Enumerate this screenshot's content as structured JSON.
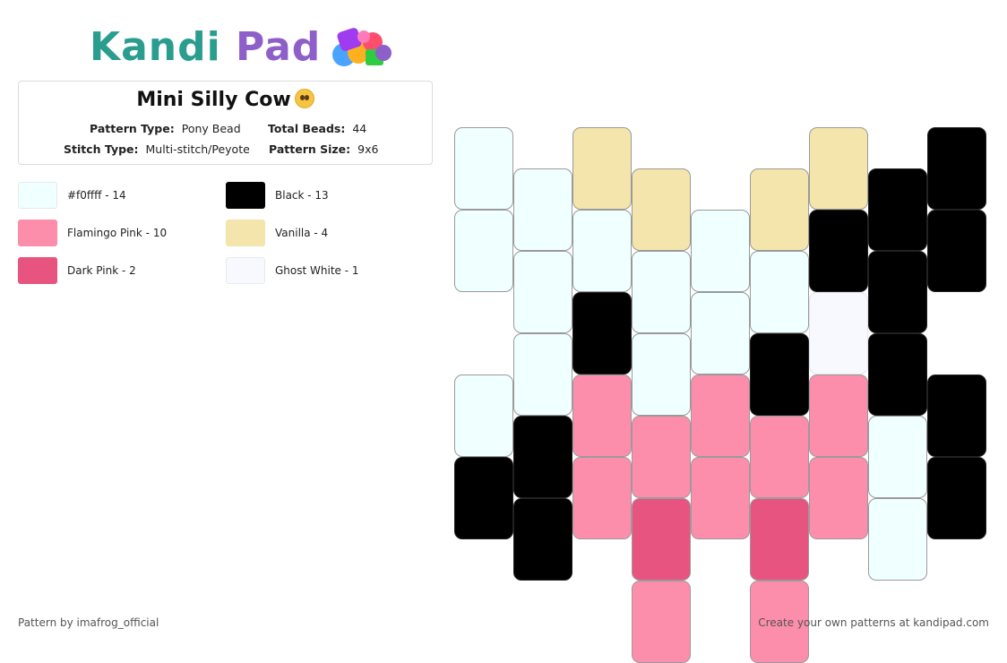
{
  "logo": {
    "text_part1": "Kandi",
    "text_part2": " Pad"
  },
  "pattern": {
    "title": "Mini Silly Cow",
    "title_emoji": "pleading-face-emoji",
    "pattern_type_label": "Pattern Type:",
    "pattern_type": "Pony Bead",
    "total_beads_label": "Total Beads:",
    "total_beads": "44",
    "stitch_type_label": "Stitch Type:",
    "stitch_type": "Multi-stitch/Peyote",
    "pattern_size_label": "Pattern Size:",
    "pattern_size": "9x6"
  },
  "legend": [
    {
      "label": "#f0ffff - 14",
      "color": "#f0ffff"
    },
    {
      "label": "Black - 13",
      "color": "#000000"
    },
    {
      "label": "Flamingo Pink - 10",
      "color": "#fc8eac"
    },
    {
      "label": "Vanilla - 4",
      "color": "#f3e5ab"
    },
    {
      "label": "Dark Pink - 2",
      "color": "#e75480"
    },
    {
      "label": "Ghost White - 1",
      "color": "#f8f8ff"
    }
  ],
  "colors": {
    "A": "#f0ffff",
    "B": "#000000",
    "F": "#fc8eac",
    "V": "#f3e5ab",
    "D": "#e75480",
    "G": "#f8f8ff"
  },
  "bead_columns": [
    [
      "A",
      "A",
      "",
      "A",
      "B"
    ],
    [
      "A",
      "A",
      "A",
      "B",
      "B"
    ],
    [
      "V",
      "A",
      "B",
      "F",
      "F"
    ],
    [
      "V",
      "A",
      "A",
      "F",
      "D",
      "F"
    ],
    [
      "",
      "A",
      "A",
      "F",
      "F"
    ],
    [
      "V",
      "A",
      "B",
      "F",
      "D",
      "F"
    ],
    [
      "V",
      "B",
      "G",
      "F",
      "F"
    ],
    [
      "B",
      "B",
      "B",
      "A",
      "A"
    ],
    [
      "B",
      "B",
      "",
      "B",
      "B"
    ]
  ],
  "footer": {
    "left": "Pattern by imafrog_official",
    "right": "Create your own patterns at kandipad.com"
  }
}
